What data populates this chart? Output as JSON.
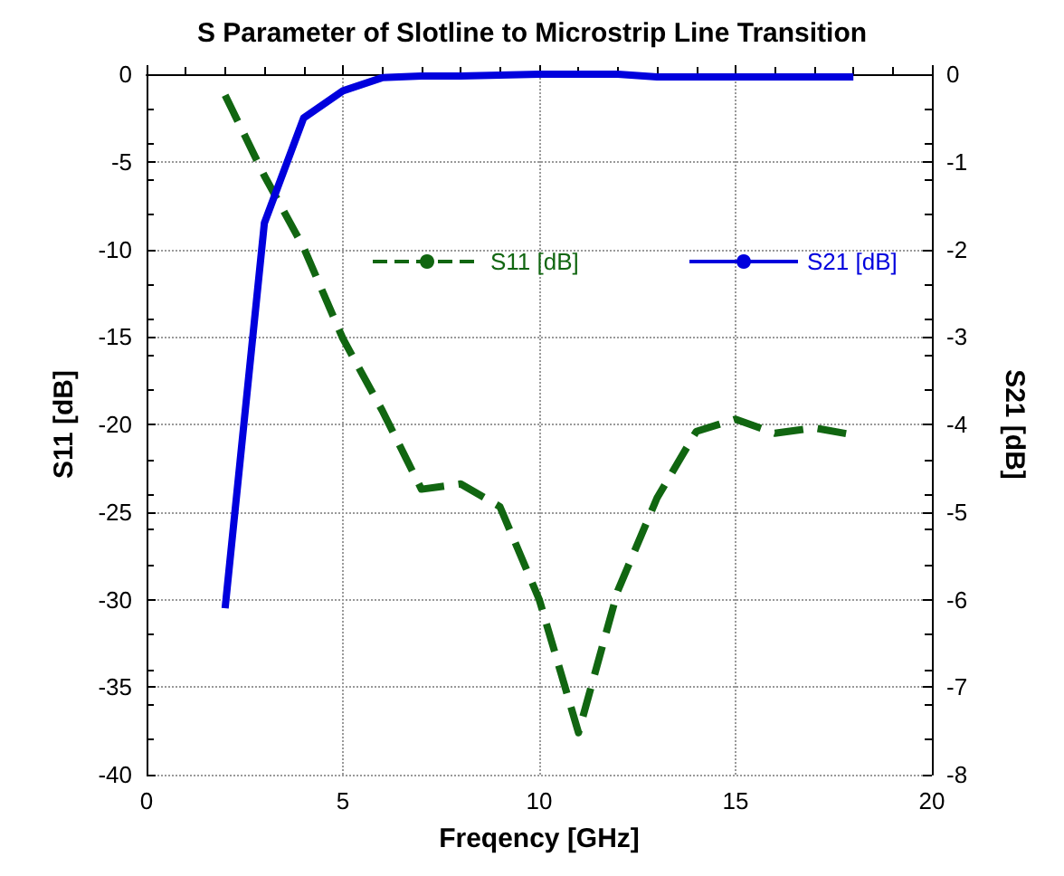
{
  "chart_data": {
    "type": "line",
    "title": "S Parameter of Slotline to Microstrip Line Transition",
    "xlabel": "Freqency [GHz]",
    "ylabel": "S11 [dB]",
    "y2label": "S21 [dB]",
    "x": [
      2,
      3,
      4,
      5,
      6,
      7,
      8,
      9,
      10,
      11,
      12,
      13,
      14,
      15,
      16,
      17,
      18
    ],
    "series": [
      {
        "name": "S11 [dB]",
        "color": "#116611",
        "line_style": "dashed",
        "values": [
          -1.2,
          -5.8,
          -9.9,
          -15.1,
          -19.2,
          -23.7,
          -23.4,
          -24.7,
          -30.0,
          -37.6,
          -29.5,
          -24.2,
          -20.4,
          -19.7,
          -20.5,
          -20.2,
          -20.6
        ]
      },
      {
        "name": "S21 [dB]",
        "color": "#0000dd",
        "line_style": "solid",
        "axis": "y2",
        "values": [
          -6.1,
          -1.7,
          -0.5,
          -0.19,
          -0.04,
          -0.02,
          -0.02,
          -0.01,
          0,
          0,
          0,
          -0.03,
          -0.03,
          -0.03,
          -0.03,
          -0.03,
          -0.03
        ]
      }
    ],
    "xlim": [
      0,
      20
    ],
    "xticks": [
      0,
      5,
      10,
      15,
      20
    ],
    "ylim": [
      -40,
      0
    ],
    "yticks": [
      -40,
      -35,
      -30,
      -25,
      -20,
      -15,
      -10,
      -5,
      0
    ],
    "y2lim": [
      -8,
      0
    ],
    "y2ticks": [
      -8,
      -7,
      -6,
      -5,
      -4,
      -3,
      -2,
      -1,
      0
    ],
    "grid": true,
    "legend": "top right",
    "marker": "none"
  }
}
